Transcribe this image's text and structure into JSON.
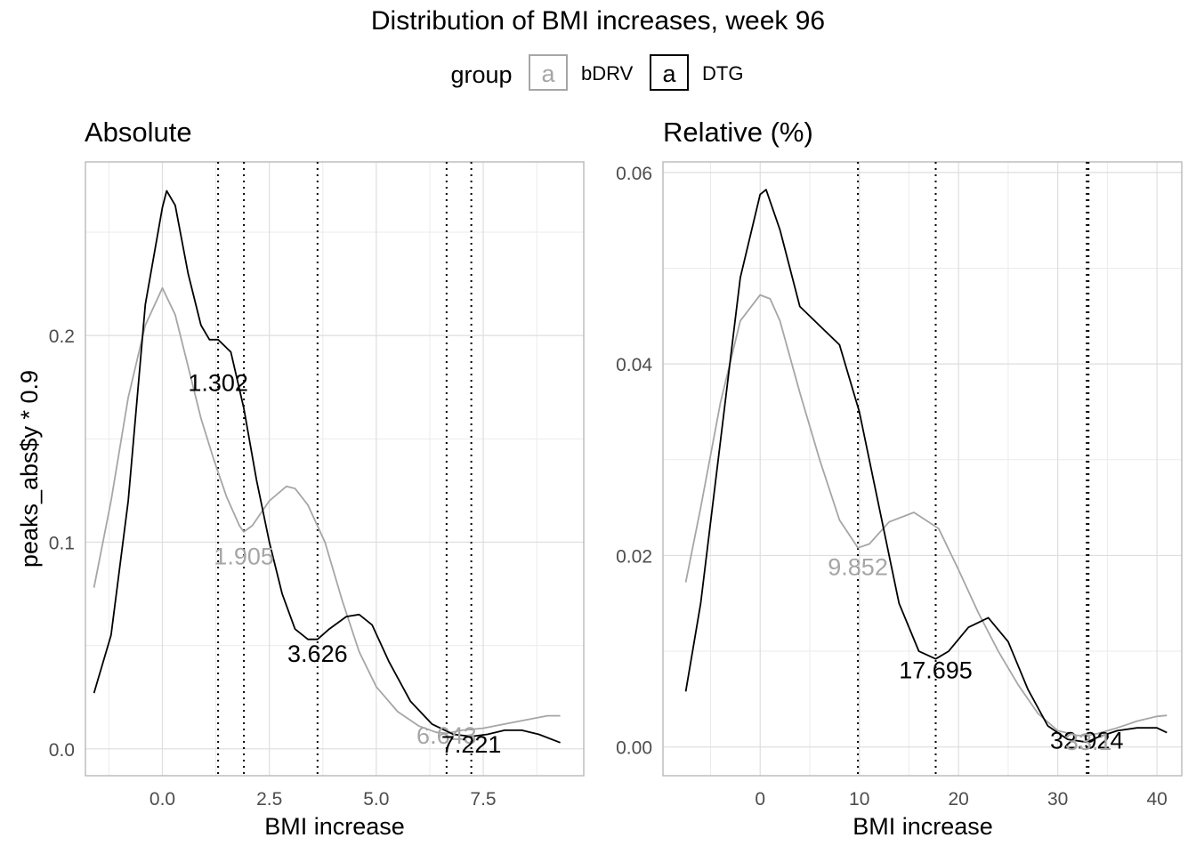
{
  "title": "Distribution of BMI increases, week 96",
  "legend": {
    "title": "group",
    "key_glyph": "a",
    "items": [
      {
        "name": "bDRV",
        "color": "#A6A6A6"
      },
      {
        "name": "DTG",
        "color": "#000000"
      }
    ]
  },
  "chart_data": [
    {
      "type": "line",
      "title": "Absolute",
      "xlabel": "BMI increase",
      "ylabel": "peaks_abs$y * 0.9",
      "xlim": [
        -1.8,
        9.85
      ],
      "ylim": [
        -0.013,
        0.284
      ],
      "xticks": [
        0.0,
        2.5,
        5.0,
        7.5
      ],
      "xtick_labels": [
        "0.0",
        "2.5",
        "5.0",
        "7.5"
      ],
      "yticks": [
        0.0,
        0.1,
        0.2
      ],
      "ytick_labels": [
        "0.0",
        "0.1",
        "0.2"
      ],
      "grid": true,
      "series": [
        {
          "name": "bDRV",
          "color": "#A6A6A6",
          "x": [
            -1.6,
            -1.2,
            -0.8,
            -0.4,
            0.0,
            0.3,
            0.6,
            0.9,
            1.2,
            1.5,
            1.8,
            1.9,
            2.1,
            2.5,
            2.9,
            3.1,
            3.4,
            3.8,
            4.2,
            4.6,
            5.0,
            5.5,
            6.0,
            6.4,
            6.64,
            7.0,
            7.5,
            8.0,
            8.5,
            9.0,
            9.3
          ],
          "values": [
            0.078,
            0.12,
            0.17,
            0.205,
            0.223,
            0.21,
            0.185,
            0.16,
            0.14,
            0.122,
            0.108,
            0.105,
            0.108,
            0.12,
            0.127,
            0.126,
            0.118,
            0.1,
            0.072,
            0.047,
            0.03,
            0.018,
            0.011,
            0.008,
            0.0075,
            0.009,
            0.01,
            0.012,
            0.014,
            0.016,
            0.016
          ]
        },
        {
          "name": "DTG",
          "color": "#000000",
          "x": [
            -1.6,
            -1.2,
            -0.8,
            -0.4,
            0.0,
            0.1,
            0.3,
            0.6,
            0.9,
            1.1,
            1.302,
            1.6,
            1.9,
            2.2,
            2.5,
            2.8,
            3.1,
            3.4,
            3.626,
            3.9,
            4.3,
            4.6,
            4.9,
            5.3,
            5.8,
            6.3,
            6.8,
            7.221,
            7.6,
            8.0,
            8.4,
            8.8,
            9.3
          ],
          "values": [
            0.027,
            0.055,
            0.12,
            0.215,
            0.262,
            0.27,
            0.263,
            0.23,
            0.205,
            0.198,
            0.198,
            0.192,
            0.165,
            0.13,
            0.1,
            0.075,
            0.058,
            0.053,
            0.053,
            0.058,
            0.064,
            0.065,
            0.06,
            0.042,
            0.023,
            0.012,
            0.007,
            0.006,
            0.007,
            0.009,
            0.009,
            0.007,
            0.003
          ]
        }
      ],
      "vlines": [
        1.302,
        1.905,
        3.626,
        6.643,
        7.221
      ],
      "annotations": [
        {
          "text": "1.302",
          "x": 1.302,
          "y": 0.177,
          "color": "#000000"
        },
        {
          "text": "1.905",
          "x": 1.905,
          "y": 0.093,
          "color": "#A6A6A6"
        },
        {
          "text": "3.626",
          "x": 3.626,
          "y": 0.046,
          "color": "#000000"
        },
        {
          "text": "6.643",
          "x": 6.643,
          "y": 0.0063,
          "color": "#A6A6A6"
        },
        {
          "text": "7.221",
          "x": 7.221,
          "y": 0.002,
          "color": "#000000"
        }
      ]
    },
    {
      "type": "line",
      "title": "Relative (%)",
      "xlabel": "BMI increase",
      "ylabel": "",
      "xlim": [
        -9.8,
        42.5
      ],
      "ylim": [
        -0.003,
        0.0611
      ],
      "xticks": [
        0,
        10,
        20,
        30,
        40
      ],
      "xtick_labels": [
        "0",
        "10",
        "20",
        "30",
        "40"
      ],
      "yticks": [
        0.0,
        0.02,
        0.04,
        0.06
      ],
      "ytick_labels": [
        "0.00",
        "0.02",
        "0.04",
        "0.06"
      ],
      "grid": true,
      "series": [
        {
          "name": "bDRV",
          "color": "#A6A6A6",
          "x": [
            -7.5,
            -6,
            -4,
            -2,
            0,
            1,
            2,
            4,
            6,
            8,
            9.852,
            11,
            13,
            15.5,
            18,
            20,
            22,
            24,
            26,
            28,
            30,
            32,
            33,
            34,
            36,
            38,
            40,
            41
          ],
          "values": [
            0.0172,
            0.025,
            0.036,
            0.0445,
            0.0472,
            0.0468,
            0.0445,
            0.037,
            0.03,
            0.0237,
            0.0208,
            0.0212,
            0.0235,
            0.0245,
            0.0228,
            0.0185,
            0.014,
            0.01,
            0.0065,
            0.0035,
            0.0017,
            0.0012,
            0.0012,
            0.0014,
            0.002,
            0.0027,
            0.0032,
            0.0033
          ]
        },
        {
          "name": "DTG",
          "color": "#000000",
          "x": [
            -7.5,
            -6,
            -4,
            -2,
            0,
            0.6,
            2,
            4,
            6,
            8,
            10,
            12,
            14,
            16,
            17.695,
            19,
            21,
            23,
            25,
            27,
            29,
            31,
            32.924,
            34,
            36,
            38,
            40,
            41
          ],
          "values": [
            0.0058,
            0.015,
            0.032,
            0.049,
            0.0577,
            0.0582,
            0.054,
            0.046,
            0.044,
            0.042,
            0.035,
            0.025,
            0.015,
            0.01,
            0.0092,
            0.01,
            0.0125,
            0.0135,
            0.011,
            0.006,
            0.0022,
            0.0008,
            0.0005,
            0.001,
            0.0017,
            0.002,
            0.002,
            0.0015
          ]
        }
      ],
      "vlines": [
        9.852,
        17.695,
        32.924,
        33.1
      ],
      "annotations": [
        {
          "text": "9.852",
          "x": 9.852,
          "y": 0.0188,
          "color": "#A6A6A6"
        },
        {
          "text": "17.695",
          "x": 17.695,
          "y": 0.008,
          "color": "#000000"
        },
        {
          "text": "32.924",
          "x": 32.924,
          "y": 0.00065,
          "color": "#000000"
        },
        {
          "text": "33.1",
          "x": 33.1,
          "y": 0.00055,
          "color": "#A6A6A6"
        }
      ]
    }
  ]
}
